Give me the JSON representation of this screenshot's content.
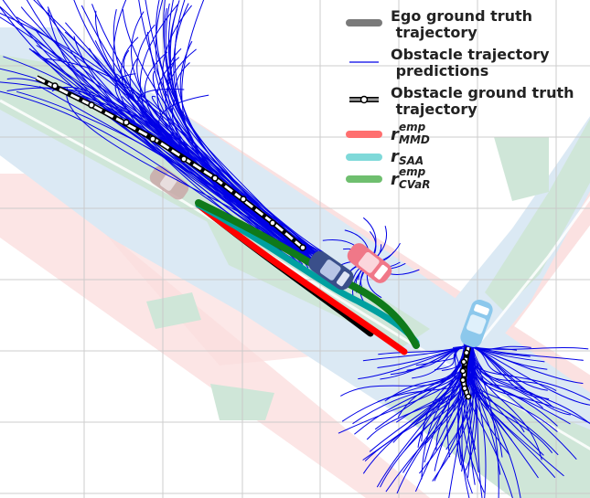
{
  "legend": {
    "ego_gt": {
      "line1": "Ego ground truth",
      "line2": " trajectory",
      "color": "#7a7a7a"
    },
    "obs_pred": {
      "line1": "Obstacle trajectory",
      "line2": " predictions",
      "color": "#0000e6"
    },
    "obs_gt": {
      "line1": "Obstacle ground truth",
      "line2": " trajectory",
      "color": "#1a1a1a"
    },
    "mmd": {
      "symbol": "r",
      "sup": "emp",
      "sub": "MMD",
      "color": "#ff6f6f"
    },
    "saa": {
      "symbol": "r",
      "sub": "SAA",
      "color": "#7fd9d9"
    },
    "cvar": {
      "symbol": "r",
      "sup": "emp",
      "sub": "CVaR",
      "color": "#6fbf6f"
    }
  },
  "colors": {
    "road": "#dbe9f4",
    "lane_green": "#cfe6d8",
    "offroad_red": "#fbdede",
    "grid": "#c8c8c8",
    "ego_path_black": "#000000",
    "ego_path_red": "#ff0000",
    "ego_path_cyan": "#00a0a0",
    "ego_path_green": "#0f7a1a",
    "car_pink": "#f07888",
    "car_navy": "#3a4f8a",
    "car_light_blue": "#8cc8ec",
    "car_faded": "#c9a8a8"
  }
}
